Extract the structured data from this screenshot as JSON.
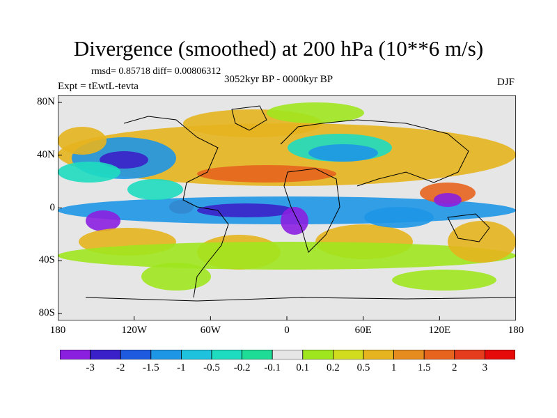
{
  "title": "Divergence (smoothed) at 200 hPa (10**6 m/s)",
  "subtitle": "rmsd= 0.85718 diff= 0.00806312",
  "center_string": "3052kyr BP - 0000kyr BP",
  "left_string": "Expt = tEwtL-tevta",
  "right_string": "DJF",
  "y_axis_labels": [
    "80N",
    "40N",
    "0",
    "40S",
    "80S"
  ],
  "x_axis_labels": [
    "180",
    "120W",
    "60W",
    "0",
    "60E",
    "120E",
    "180"
  ],
  "colorbar": {
    "labels": [
      "-3",
      "-2",
      "-1.5",
      "-1",
      "-0.5",
      "-0.2",
      "-0.1",
      "0.1",
      "0.2",
      "0.5",
      "1",
      "1.5",
      "2",
      "3"
    ],
    "colors": [
      "#8a1fe0",
      "#3a20c8",
      "#1e5ae0",
      "#1e96e6",
      "#1ec2dc",
      "#1edcc0",
      "#1edc96",
      "#e6e6e6",
      "#a0e61e",
      "#d2dc1e",
      "#e6b41e",
      "#e68c1e",
      "#e6641e",
      "#e63c1e",
      "#e60a0a"
    ]
  },
  "map_colors": {
    "land_outline": "#000000",
    "background": "#e6e6e6",
    "neg_strong": "#3a20c8",
    "neg_mid": "#1e96e6",
    "neg_weak": "#1edcc0",
    "pos_weak": "#a0e61e",
    "pos_mid": "#e6b41e",
    "pos_strong": "#e6641e",
    "pos_max": "#e60a0a",
    "neg_max": "#8a1fe0"
  }
}
